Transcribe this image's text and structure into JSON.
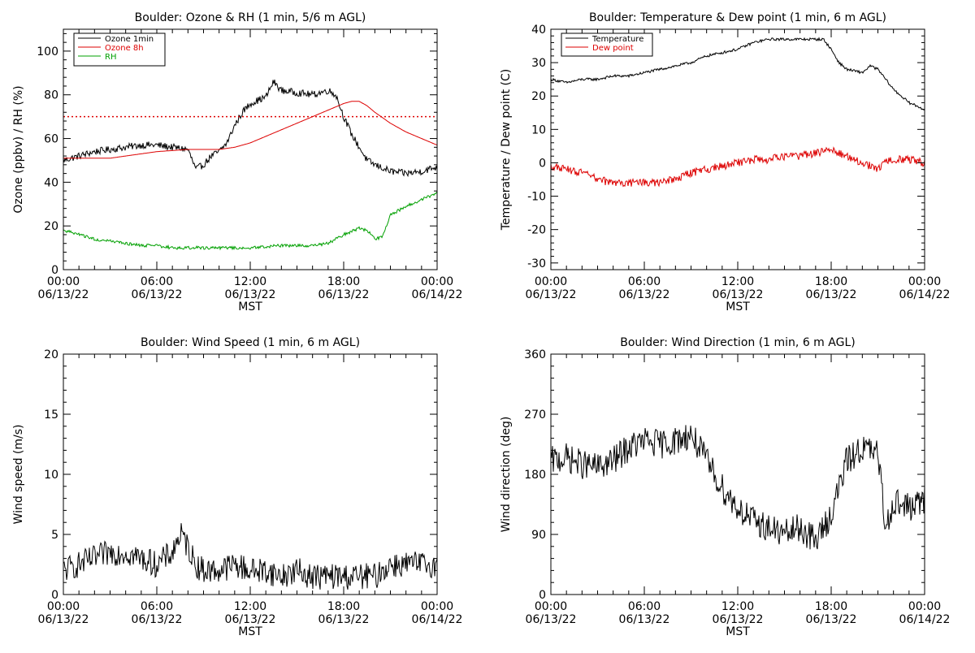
{
  "chart_data": [
    {
      "type": "line",
      "title": "Boulder: Ozone & RH (1 min, 5/6 m AGL)",
      "xlabel": "MST",
      "ylabel": "Ozone (ppbv) / RH (%)",
      "xlim": [
        0,
        24
      ],
      "ylim": [
        0,
        110
      ],
      "yticks": [
        0,
        20,
        40,
        60,
        80,
        100
      ],
      "xticks": [
        {
          "time": "00:00",
          "date": "06/13/22"
        },
        {
          "time": "06:00",
          "date": "06/13/22"
        },
        {
          "time": "12:00",
          "date": "06/13/22"
        },
        {
          "time": "18:00",
          "date": "06/13/22"
        },
        {
          "time": "00:00",
          "date": "06/14/22"
        }
      ],
      "legend_position": "top-left",
      "reference_line": {
        "y": 70,
        "color": "#dd0000",
        "style": "dotted"
      },
      "series": [
        {
          "name": "Ozone 1min",
          "color": "#000000",
          "noise": 1.6,
          "x": [
            0,
            1,
            2,
            3,
            4,
            5,
            6,
            7,
            8,
            8.5,
            9,
            9.5,
            10,
            10.5,
            11,
            11.5,
            12,
            13,
            13.5,
            14,
            15,
            16,
            17,
            17.5,
            18,
            18.5,
            19,
            19.5,
            20,
            21,
            22,
            23,
            24
          ],
          "y": [
            50,
            52,
            54,
            55,
            56,
            57,
            57,
            56,
            55,
            46,
            48,
            52,
            54,
            58,
            66,
            72,
            76,
            79,
            86,
            82,
            81,
            80,
            82,
            80,
            70,
            62,
            56,
            50,
            48,
            45,
            44,
            45,
            47
          ]
        },
        {
          "name": "Ozone 8h",
          "color": "#dd0000",
          "noise": 0,
          "x": [
            0,
            2,
            3,
            4,
            6,
            8,
            10,
            11,
            12,
            14,
            16,
            17,
            18,
            18.5,
            19,
            19.5,
            20,
            21,
            22,
            23,
            24
          ],
          "y": [
            51,
            51,
            51,
            52,
            54,
            55,
            55,
            56,
            58,
            64,
            70,
            73,
            76,
            77,
            77,
            75,
            72,
            67,
            63,
            60,
            57
          ]
        },
        {
          "name": "RH",
          "color": "#00a000",
          "noise": 0.7,
          "x": [
            0,
            1,
            2,
            3,
            4,
            5,
            6,
            7,
            8,
            10,
            12,
            14,
            16,
            17,
            18,
            19,
            19.5,
            20,
            20.5,
            21,
            22,
            23,
            24
          ],
          "y": [
            18,
            16,
            14,
            13,
            12,
            11,
            11,
            10,
            10,
            10,
            10,
            11,
            11,
            12,
            16,
            19,
            18,
            14,
            15,
            25,
            29,
            32,
            35
          ]
        }
      ]
    },
    {
      "type": "line",
      "title": "Boulder: Temperature & Dew point (1 min, 6 m AGL)",
      "xlabel": "MST",
      "ylabel": "Temperature / Dew point (C)",
      "xlim": [
        0,
        24
      ],
      "ylim": [
        -32,
        40
      ],
      "yticks": [
        -30,
        -20,
        -10,
        0,
        10,
        20,
        30,
        40
      ],
      "xticks": [
        {
          "time": "00:00",
          "date": "06/13/22"
        },
        {
          "time": "06:00",
          "date": "06/13/22"
        },
        {
          "time": "12:00",
          "date": "06/13/22"
        },
        {
          "time": "18:00",
          "date": "06/13/22"
        },
        {
          "time": "00:00",
          "date": "06/14/22"
        }
      ],
      "legend_position": "top-left",
      "series": [
        {
          "name": "Temperature",
          "color": "#000000",
          "noise": 0.4,
          "x": [
            0,
            1,
            2,
            3,
            4,
            5,
            6,
            7,
            8,
            9,
            10,
            11,
            12,
            13,
            14,
            15,
            16,
            17,
            17.5,
            18,
            18.5,
            19,
            20,
            20.5,
            21,
            21.5,
            22,
            23,
            24
          ],
          "y": [
            25,
            24,
            25,
            25,
            26,
            26,
            27,
            28,
            29,
            30,
            32,
            33,
            34,
            36,
            37,
            37,
            37,
            37,
            37,
            34,
            30,
            28,
            27,
            29,
            28,
            25,
            22,
            18,
            16
          ]
        },
        {
          "name": "Dew point",
          "color": "#dd0000",
          "noise": 1.2,
          "x": [
            0,
            1,
            2,
            3,
            4,
            5,
            6,
            7,
            8,
            9,
            10,
            11,
            12,
            13,
            14,
            15,
            16,
            17,
            18,
            19,
            20,
            21,
            21.5,
            22,
            23,
            24
          ],
          "y": [
            -1,
            -2,
            -3,
            -5,
            -6,
            -6,
            -6,
            -6,
            -5,
            -3,
            -2,
            -1,
            0,
            1,
            1,
            2,
            2,
            3,
            4,
            2,
            0,
            -2,
            1,
            1,
            1,
            0
          ]
        }
      ]
    },
    {
      "type": "line",
      "title": "Boulder: Wind Speed (1 min, 6 m AGL)",
      "xlabel": "MST",
      "ylabel": "Wind speed (m/s)",
      "xlim": [
        0,
        24
      ],
      "ylim": [
        0,
        20
      ],
      "yticks": [
        0,
        5,
        10,
        15,
        20
      ],
      "xticks": [
        {
          "time": "00:00",
          "date": "06/13/22"
        },
        {
          "time": "06:00",
          "date": "06/13/22"
        },
        {
          "time": "12:00",
          "date": "06/13/22"
        },
        {
          "time": "18:00",
          "date": "06/13/22"
        },
        {
          "time": "00:00",
          "date": "06/14/22"
        }
      ],
      "series": [
        {
          "color": "#000000",
          "noise": 1.1,
          "x": [
            0,
            1,
            2,
            3,
            4,
            5,
            6,
            7,
            7.5,
            8,
            8.5,
            9,
            10,
            11,
            12,
            13,
            14,
            15,
            16,
            17,
            18,
            19,
            20,
            21,
            22,
            23,
            24
          ],
          "y": [
            2,
            2.5,
            3,
            3.5,
            3.5,
            3,
            2.5,
            3.5,
            5,
            4,
            2.5,
            2,
            2,
            2.5,
            2,
            2,
            1.5,
            2,
            1.5,
            1.5,
            1.5,
            1.5,
            1.5,
            2.5,
            2.5,
            2.5,
            2.5
          ]
        }
      ]
    },
    {
      "type": "line",
      "title": "Boulder: Wind Direction (1 min, 6 m AGL)",
      "xlabel": "MST",
      "ylabel": "Wind direction (deg)",
      "xlim": [
        0,
        24
      ],
      "ylim": [
        0,
        360
      ],
      "yticks": [
        0,
        90,
        180,
        270,
        360
      ],
      "xticks": [
        {
          "time": "00:00",
          "date": "06/13/22"
        },
        {
          "time": "06:00",
          "date": "06/13/22"
        },
        {
          "time": "12:00",
          "date": "06/13/22"
        },
        {
          "time": "18:00",
          "date": "06/13/22"
        },
        {
          "time": "00:00",
          "date": "06/14/22"
        }
      ],
      "series": [
        {
          "color": "#000000",
          "noise": 22,
          "x": [
            0,
            1,
            2,
            3,
            4,
            5,
            6,
            7,
            8,
            9,
            10,
            11,
            12,
            13,
            14,
            15,
            16,
            17,
            18,
            19,
            20,
            21,
            21.5,
            22,
            23,
            24
          ],
          "y": [
            200,
            205,
            195,
            190,
            200,
            220,
            230,
            225,
            230,
            240,
            200,
            160,
            130,
            110,
            100,
            90,
            100,
            80,
            120,
            200,
            220,
            210,
            100,
            140,
            130,
            140
          ]
        }
      ]
    }
  ]
}
